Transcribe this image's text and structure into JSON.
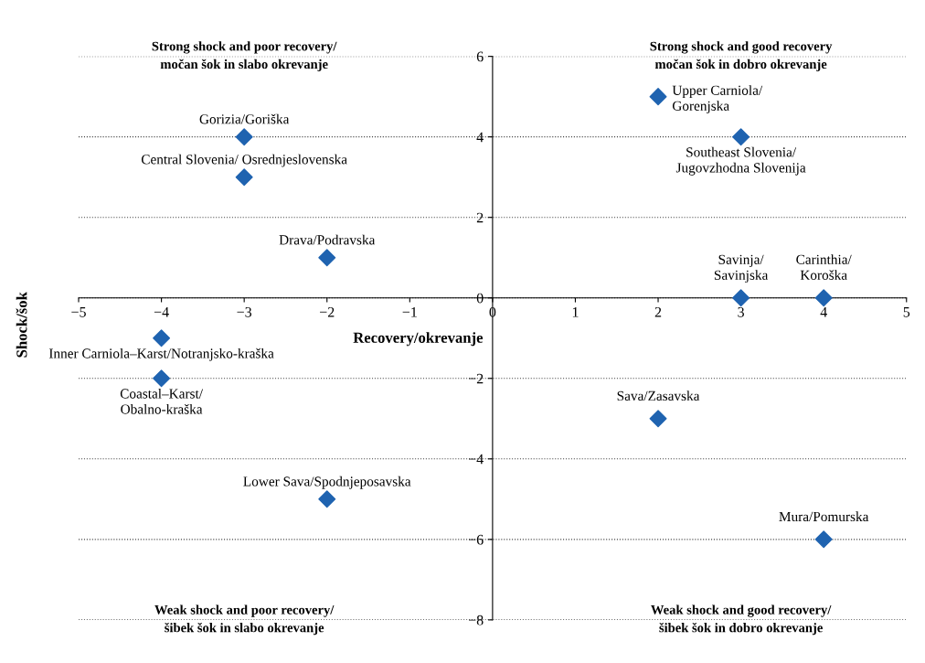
{
  "chart_data": {
    "type": "scatter",
    "xlabel": "Recovery/okrevanje",
    "ylabel": "Shock/šok",
    "x": [
      -3,
      -3,
      -2,
      -4,
      -4,
      -2,
      2,
      3,
      3,
      4,
      2,
      4
    ],
    "series": [
      {
        "color": "#1f63b0",
        "values": [
          4,
          3,
          1,
          -1,
          -2,
          -5,
          5,
          4,
          0,
          0,
          -3,
          -6
        ]
      }
    ],
    "marker": "diamond",
    "grid": "y",
    "xlim": [
      -5,
      5
    ],
    "ylim": [
      -8,
      6
    ],
    "xticks": [
      {
        "value": -5,
        "label": "−5"
      },
      {
        "value": -4,
        "label": "−4"
      },
      {
        "value": -3,
        "label": "−3"
      },
      {
        "value": -2,
        "label": "−2"
      },
      {
        "value": -1,
        "label": "−1"
      },
      {
        "value": 0,
        "label": "0"
      },
      1,
      2,
      3,
      4,
      5
    ],
    "yticks": [
      {
        "value": -8,
        "label": "−8"
      },
      {
        "value": -6,
        "label": "−6"
      },
      {
        "value": -4,
        "label": "−4"
      },
      {
        "value": -2,
        "label": "−2"
      },
      {
        "value": 0,
        "label": "0"
      },
      2,
      4,
      6
    ],
    "annotations": [
      "Strong shock and poor recovery/\nmočan šok in slabo okrevanje",
      "Strong shock and good recovery\nmočan šok in dobro okrevanje",
      "Weak shock and poor recovery/\nšibek šok in slabo okrevanje",
      "Weak shock and good recovery/\nšibek šok in dobro okrevanje",
      {
        "text": "Gorizia/Goriška",
        "x": -3,
        "y": 4
      },
      {
        "text": "Central Slovenia/ Osrednjeslovenska",
        "x": -3,
        "y": 3
      },
      {
        "text": "Drava/Podravska",
        "x": -2,
        "y": 1
      },
      {
        "text": "Inner Carniola–Karst/Notranjsko-kraška",
        "x": -4,
        "y": -1
      },
      {
        "text": "Coastal–Karst/\nObalno-kraška",
        "x": -4,
        "y": -2
      },
      {
        "text": "Lower Sava/Spodnjeposavska",
        "x": -2,
        "y": -5
      },
      {
        "text": "Upper Carniola/\nGorenjska",
        "x": 2,
        "y": 5
      },
      {
        "text": "Southeast Slovenia/\nJugovzhodna Slovenija",
        "x": 3,
        "y": 4
      },
      {
        "text": "Savinja/\nSavinjska",
        "x": 3,
        "y": 0
      },
      {
        "text": "Carinthia/\nKoroška",
        "x": 4,
        "y": 0
      },
      {
        "text": "Sava/Zasavska",
        "x": 2,
        "y": -3
      },
      {
        "text": "Mura/Pomurska",
        "x": 4,
        "y": -6
      }
    ]
  }
}
